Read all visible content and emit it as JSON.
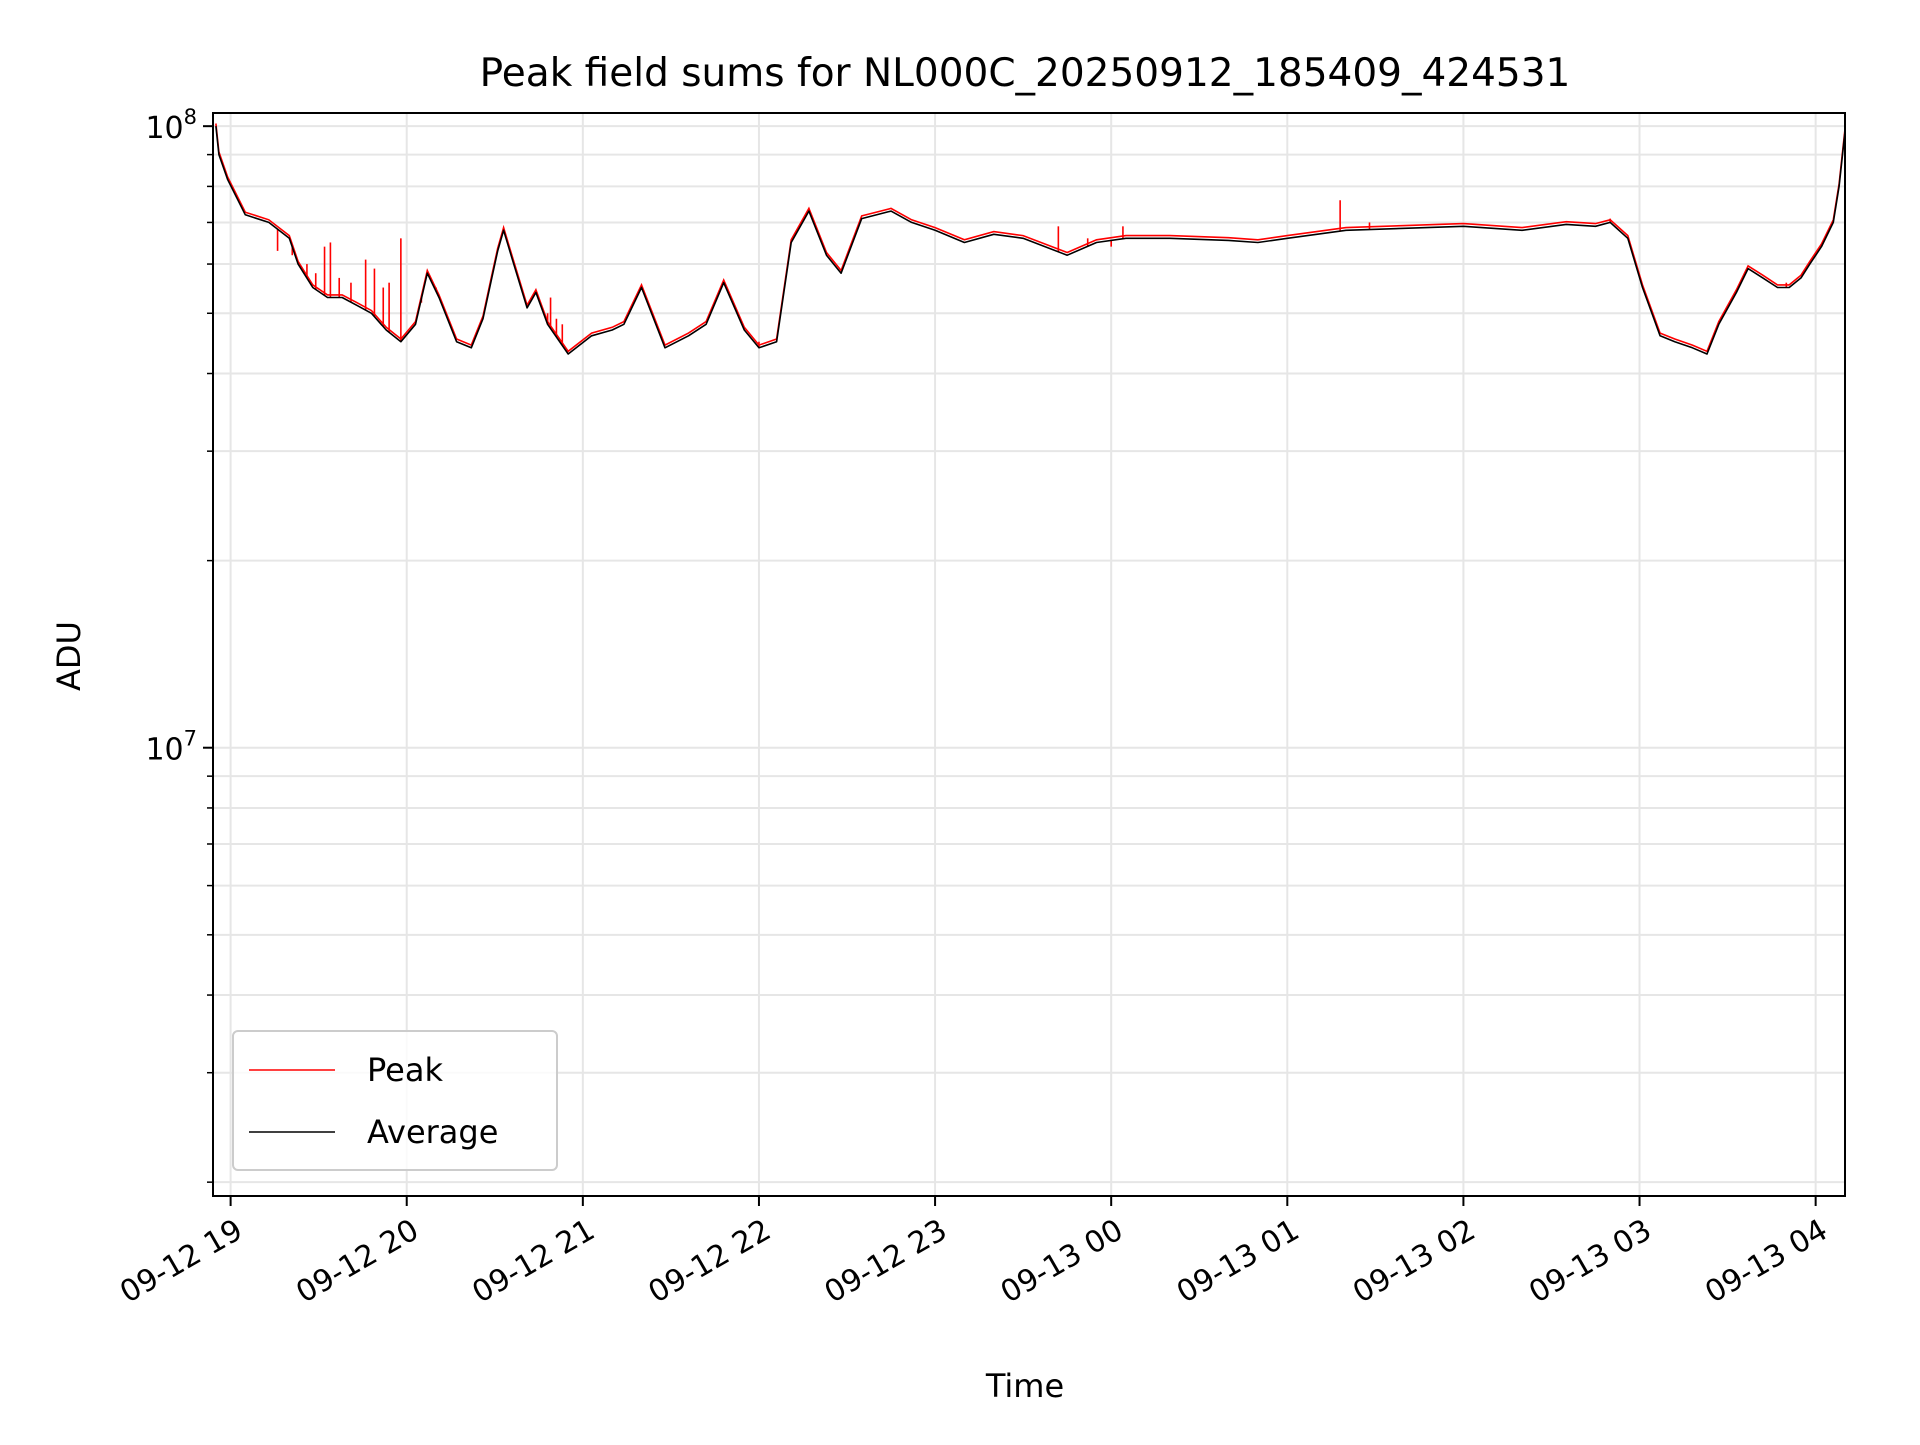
{
  "chart_data": {
    "type": "line",
    "title": "Peak field sums for NL000C_20250912_185409_424531",
    "xlabel": "Time",
    "ylabel": "ADU",
    "xlim": [
      "2025-09-12T18:54",
      "2025-09-13T04:10"
    ],
    "ylim": [
      1900000,
      105000000
    ],
    "yscale": "log",
    "grid": true,
    "legend_position": "lower-left",
    "x_ticks": [
      "09-12 19",
      "09-12 20",
      "09-12 21",
      "09-12 22",
      "09-12 23",
      "09-13 00",
      "09-13 01",
      "09-13 02",
      "09-13 03",
      "09-13 04"
    ],
    "y_ticks": [
      {
        "value": 10000000,
        "base": "10",
        "exp": "7"
      },
      {
        "value": 100000000,
        "base": "10",
        "exp": "8"
      }
    ],
    "x": [
      "2025-09-12T18:55",
      "2025-09-12T18:56",
      "2025-09-12T18:59",
      "2025-09-12T19:05",
      "2025-09-12T19:13",
      "2025-09-12T19:20",
      "2025-09-12T19:23",
      "2025-09-12T19:28",
      "2025-09-12T19:33",
      "2025-09-12T19:38",
      "2025-09-12T19:43",
      "2025-09-12T19:48",
      "2025-09-12T19:53",
      "2025-09-12T19:58",
      "2025-09-12T20:03",
      "2025-09-12T20:07",
      "2025-09-12T20:11",
      "2025-09-12T20:17",
      "2025-09-12T20:22",
      "2025-09-12T20:26",
      "2025-09-12T20:29",
      "2025-09-12T20:31",
      "2025-09-12T20:33",
      "2025-09-12T20:36",
      "2025-09-12T20:41",
      "2025-09-12T20:44",
      "2025-09-12T20:48",
      "2025-09-12T20:55",
      "2025-09-12T21:03",
      "2025-09-12T21:10",
      "2025-09-12T21:14",
      "2025-09-12T21:20",
      "2025-09-12T21:28",
      "2025-09-12T21:36",
      "2025-09-12T21:42",
      "2025-09-12T21:48",
      "2025-09-12T21:55",
      "2025-09-12T22:00",
      "2025-09-12T22:06",
      "2025-09-12T22:11",
      "2025-09-12T22:17",
      "2025-09-12T22:23",
      "2025-09-12T22:28",
      "2025-09-12T22:35",
      "2025-09-12T22:45",
      "2025-09-12T22:52",
      "2025-09-12T23:00",
      "2025-09-12T23:10",
      "2025-09-12T23:20",
      "2025-09-12T23:30",
      "2025-09-12T23:45",
      "2025-09-12T23:55",
      "2025-09-13T00:05",
      "2025-09-13T00:20",
      "2025-09-13T00:40",
      "2025-09-13T00:50",
      "2025-09-13T01:00",
      "2025-09-13T01:10",
      "2025-09-13T01:20",
      "2025-09-13T01:40",
      "2025-09-13T02:00",
      "2025-09-13T02:20",
      "2025-09-13T02:35",
      "2025-09-13T02:45",
      "2025-09-13T02:50",
      "2025-09-13T02:56",
      "2025-09-13T03:01",
      "2025-09-13T03:07",
      "2025-09-13T03:12",
      "2025-09-13T03:18",
      "2025-09-13T03:23",
      "2025-09-13T03:27",
      "2025-09-13T03:33",
      "2025-09-13T03:37",
      "2025-09-13T03:42",
      "2025-09-13T03:47",
      "2025-09-13T03:51",
      "2025-09-13T03:55",
      "2025-09-13T03:58",
      "2025-09-13T04:02",
      "2025-09-13T04:06",
      "2025-09-13T04:08",
      "2025-09-13T04:10"
    ],
    "series": [
      {
        "name": "Average",
        "color": "#000000",
        "values": [
          100000000,
          90000000,
          82000000,
          72000000,
          70000000,
          66000000,
          60000000,
          55000000,
          53000000,
          53000000,
          51500000,
          50000000,
          47000000,
          45000000,
          48000000,
          58000000,
          53000000,
          45000000,
          44000000,
          49000000,
          57000000,
          63000000,
          68000000,
          61000000,
          51000000,
          54000000,
          48000000,
          43000000,
          46000000,
          47000000,
          48000000,
          55000000,
          44000000,
          46000000,
          48000000,
          56000000,
          47000000,
          44000000,
          45000000,
          65000000,
          73000000,
          62000000,
          58000000,
          71000000,
          73000000,
          70000000,
          68000000,
          65000000,
          67000000,
          66000000,
          62000000,
          65000000,
          66000000,
          66000000,
          65500000,
          65000000,
          66000000,
          67000000,
          68000000,
          68500000,
          69000000,
          68000000,
          69500000,
          69000000,
          70000000,
          66000000,
          55000000,
          46000000,
          45000000,
          44000000,
          43000000,
          48000000,
          54000000,
          59000000,
          57000000,
          55000000,
          55000000,
          57000000,
          60000000,
          64000000,
          70000000,
          80000000,
          98000000
        ]
      },
      {
        "name": "Peak",
        "color": "#ff0000",
        "spikes": [
          {
            "x": "2025-09-12T19:16",
            "y": 63000000
          },
          {
            "x": "2025-09-12T19:21",
            "y": 62000000
          },
          {
            "x": "2025-09-12T19:26",
            "y": 60000000
          },
          {
            "x": "2025-09-12T19:29",
            "y": 58000000
          },
          {
            "x": "2025-09-12T19:32",
            "y": 64000000
          },
          {
            "x": "2025-09-12T19:34",
            "y": 65000000
          },
          {
            "x": "2025-09-12T19:37",
            "y": 57000000
          },
          {
            "x": "2025-09-12T19:41",
            "y": 56000000
          },
          {
            "x": "2025-09-12T19:46",
            "y": 61000000
          },
          {
            "x": "2025-09-12T19:49",
            "y": 59000000
          },
          {
            "x": "2025-09-12T19:52",
            "y": 55000000
          },
          {
            "x": "2025-09-12T19:54",
            "y": 56000000
          },
          {
            "x": "2025-09-12T19:58",
            "y": 66000000
          },
          {
            "x": "2025-09-12T20:05",
            "y": 52000000
          },
          {
            "x": "2025-09-12T20:10",
            "y": 55000000
          },
          {
            "x": "2025-09-12T20:48",
            "y": 50000000
          },
          {
            "x": "2025-09-12T20:49",
            "y": 53000000
          },
          {
            "x": "2025-09-12T20:51",
            "y": 49000000
          },
          {
            "x": "2025-09-12T20:53",
            "y": 48000000
          },
          {
            "x": "2025-09-12T22:00",
            "y": 45000000
          },
          {
            "x": "2025-09-12T23:42",
            "y": 69000000
          },
          {
            "x": "2025-09-12T23:52",
            "y": 66000000
          },
          {
            "x": "2025-09-13T00:00",
            "y": 64000000
          },
          {
            "x": "2025-09-13T00:04",
            "y": 69000000
          },
          {
            "x": "2025-09-13T00:10",
            "y": 66000000
          },
          {
            "x": "2025-09-13T01:18",
            "y": 76000000
          },
          {
            "x": "2025-09-13T01:28",
            "y": 70000000
          },
          {
            "x": "2025-09-13T02:50",
            "y": 71000000
          },
          {
            "x": "2025-09-13T03:50",
            "y": 56000000
          }
        ]
      }
    ],
    "legend": [
      "Peak",
      "Average"
    ]
  }
}
